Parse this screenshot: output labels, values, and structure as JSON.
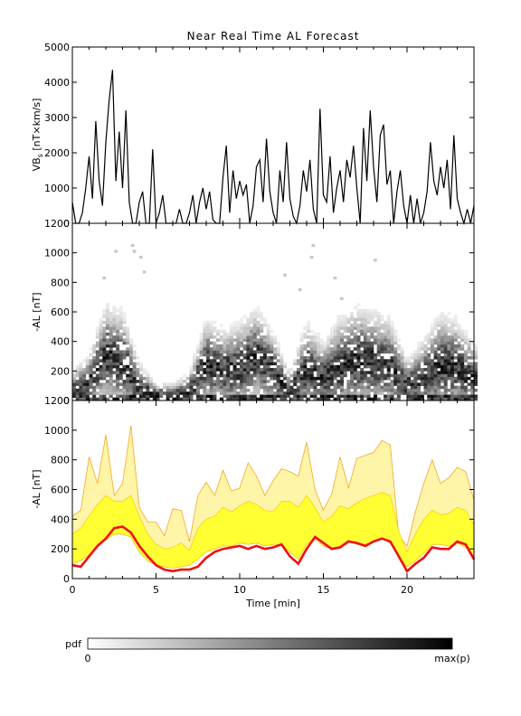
{
  "figure": {
    "title": "Near Real Time AL Forecast",
    "xlabel": "Time [min]",
    "colorbar": {
      "label": "pdf",
      "min_label": "0",
      "max_label": "max(p)"
    }
  },
  "chart_data": [
    {
      "type": "line",
      "ylabel_main": "VB",
      "ylabel_sub": "s",
      "ylabel_units": " [nT×km/s]",
      "xlim": [
        0,
        24
      ],
      "ylim": [
        0,
        5000
      ],
      "yticks": [
        0,
        1000,
        2000,
        3000,
        4000,
        5000
      ],
      "x": [
        0,
        0.2,
        0.4,
        0.6,
        0.8,
        1.0,
        1.2,
        1.4,
        1.6,
        1.8,
        2.0,
        2.2,
        2.4,
        2.6,
        2.8,
        3.0,
        3.2,
        3.4,
        3.6,
        3.8,
        4.0,
        4.2,
        4.4,
        4.6,
        4.8,
        5.0,
        5.2,
        5.4,
        5.6,
        5.8,
        6.0,
        6.2,
        6.4,
        6.6,
        6.8,
        7.0,
        7.2,
        7.4,
        7.6,
        7.8,
        8.0,
        8.2,
        8.4,
        8.6,
        8.8,
        9.0,
        9.2,
        9.4,
        9.6,
        9.8,
        10.0,
        10.2,
        10.4,
        10.6,
        10.8,
        11.0,
        11.2,
        11.4,
        11.6,
        11.8,
        12.0,
        12.2,
        12.4,
        12.6,
        12.8,
        13.0,
        13.2,
        13.4,
        13.6,
        13.8,
        14.0,
        14.2,
        14.4,
        14.6,
        14.8,
        15.0,
        15.2,
        15.4,
        15.6,
        15.8,
        16.0,
        16.2,
        16.4,
        16.6,
        16.8,
        17.0,
        17.2,
        17.4,
        17.6,
        17.8,
        18.0,
        18.2,
        18.4,
        18.6,
        18.8,
        19.0,
        19.2,
        19.4,
        19.6,
        19.8,
        20.0,
        20.2,
        20.4,
        20.6,
        20.8,
        21.0,
        21.2,
        21.4,
        21.6,
        21.8,
        22.0,
        22.2,
        22.4,
        22.6,
        22.8,
        23.0,
        23.2,
        23.4,
        23.6,
        23.8,
        24.0
      ],
      "y": [
        600,
        0,
        0,
        300,
        1000,
        1900,
        700,
        2900,
        1200,
        500,
        2300,
        3500,
        4350,
        1200,
        2600,
        1000,
        3200,
        600,
        0,
        0,
        600,
        900,
        0,
        0,
        2100,
        0,
        300,
        800,
        0,
        0,
        0,
        0,
        400,
        0,
        0,
        300,
        800,
        0,
        600,
        1000,
        400,
        900,
        100,
        0,
        0,
        1300,
        2200,
        300,
        1500,
        700,
        1200,
        800,
        1100,
        0,
        500,
        1600,
        1800,
        600,
        2400,
        900,
        300,
        0,
        1500,
        600,
        2300,
        700,
        200,
        0,
        500,
        1500,
        900,
        1800,
        400,
        0,
        3250,
        800,
        600,
        1900,
        300,
        1000,
        1500,
        600,
        1800,
        1300,
        2200,
        1000,
        0,
        2700,
        1200,
        3200,
        1600,
        600,
        2500,
        2800,
        1100,
        1500,
        0,
        900,
        1500,
        500,
        0,
        800,
        0,
        700,
        0,
        300,
        900,
        2300,
        1200,
        800,
        1600,
        1000,
        1800,
        400,
        2500,
        700,
        300,
        0,
        400,
        0,
        500
      ],
      "series": [
        {
          "values_ref": "y"
        }
      ]
    },
    {
      "type": "heatmap",
      "ylabel": "-AL [nT]",
      "xlim": [
        0,
        24
      ],
      "ylim": [
        0,
        1200
      ],
      "yticks": [
        0,
        200,
        400,
        600,
        800,
        1000,
        1200
      ],
      "bin_width": 0.2,
      "bin_height": 20,
      "values_scale": "0 = white, 1 = max(p)",
      "ridge_x": [
        0,
        1,
        2,
        3,
        4,
        5,
        6,
        7,
        8,
        9,
        10,
        11,
        12,
        13,
        14,
        15,
        16,
        17,
        18,
        19,
        20,
        21,
        22,
        23,
        24
      ],
      "ridge_y": [
        60,
        120,
        300,
        260,
        80,
        30,
        30,
        60,
        250,
        200,
        220,
        300,
        200,
        60,
        210,
        150,
        220,
        270,
        260,
        230,
        100,
        160,
        240,
        220,
        150
      ],
      "ridge_spread": [
        60,
        90,
        160,
        160,
        80,
        40,
        40,
        60,
        140,
        130,
        140,
        150,
        120,
        60,
        150,
        110,
        160,
        170,
        160,
        150,
        80,
        120,
        160,
        150,
        110
      ],
      "outliers": [
        [
          3.5,
          1040
        ],
        [
          3.6,
          1000
        ],
        [
          4.0,
          960
        ],
        [
          4.2,
          860
        ],
        [
          14.3,
          1040
        ],
        [
          14.2,
          960
        ],
        [
          12.6,
          840
        ],
        [
          15.6,
          820
        ],
        [
          18.0,
          940
        ],
        [
          2.5,
          1000
        ],
        [
          1.8,
          820
        ],
        [
          13.5,
          740
        ],
        [
          16.0,
          680
        ]
      ]
    },
    {
      "type": "area",
      "ylabel": "-AL [nT]",
      "xlabel": "Time [min]",
      "xlim": [
        0,
        24
      ],
      "ylim": [
        0,
        1200
      ],
      "yticks": [
        0,
        200,
        400,
        600,
        800,
        1000,
        1200
      ],
      "xticks": [
        0,
        5,
        10,
        15,
        20
      ],
      "x": [
        0,
        0.5,
        1.0,
        1.5,
        2.0,
        2.5,
        3.0,
        3.5,
        4.0,
        4.5,
        5.0,
        5.5,
        6.0,
        6.5,
        7.0,
        7.5,
        8.0,
        8.5,
        9.0,
        9.5,
        10.0,
        10.5,
        11.0,
        11.5,
        12.0,
        12.5,
        13.0,
        13.5,
        14.0,
        14.5,
        15.0,
        15.5,
        16.0,
        16.5,
        17.0,
        17.5,
        18.0,
        18.5,
        19.0,
        19.5,
        20.0,
        20.5,
        21.0,
        21.5,
        22.0,
        22.5,
        23.0,
        23.5,
        24.0
      ],
      "series": [
        {
          "role": "upper_envelope",
          "color": "#f5a623",
          "values": [
            420,
            460,
            820,
            640,
            970,
            560,
            640,
            1030,
            480,
            380,
            380,
            290,
            470,
            460,
            250,
            560,
            650,
            560,
            730,
            590,
            610,
            780,
            690,
            560,
            660,
            740,
            720,
            690,
            920,
            600,
            460,
            570,
            820,
            610,
            810,
            830,
            850,
            930,
            900,
            290,
            220,
            450,
            640,
            800,
            640,
            680,
            750,
            720,
            530
          ]
        },
        {
          "role": "band_upper",
          "color": "#ffff33",
          "values": [
            300,
            340,
            420,
            500,
            560,
            520,
            520,
            560,
            420,
            300,
            230,
            200,
            210,
            240,
            190,
            340,
            400,
            420,
            480,
            450,
            490,
            520,
            500,
            460,
            450,
            520,
            520,
            480,
            560,
            480,
            380,
            420,
            490,
            470,
            510,
            540,
            560,
            580,
            560,
            320,
            180,
            300,
            400,
            460,
            430,
            440,
            480,
            460,
            360
          ]
        },
        {
          "role": "band_lower",
          "color": "#ffff33",
          "values": [
            100,
            120,
            160,
            230,
            260,
            300,
            300,
            280,
            180,
            120,
            90,
            80,
            70,
            80,
            90,
            130,
            180,
            200,
            220,
            220,
            240,
            230,
            240,
            220,
            230,
            230,
            180,
            130,
            230,
            270,
            220,
            200,
            220,
            260,
            230,
            230,
            250,
            270,
            240,
            150,
            80,
            120,
            170,
            230,
            230,
            220,
            240,
            210,
            160
          ]
        },
        {
          "role": "median",
          "name": "",
          "color": "#ee1111",
          "values": [
            90,
            80,
            150,
            220,
            270,
            340,
            350,
            310,
            220,
            150,
            90,
            60,
            50,
            60,
            60,
            80,
            140,
            180,
            200,
            210,
            220,
            200,
            220,
            200,
            210,
            230,
            150,
            100,
            200,
            280,
            240,
            200,
            210,
            250,
            240,
            220,
            250,
            270,
            250,
            150,
            50,
            100,
            140,
            210,
            200,
            200,
            250,
            230,
            130
          ]
        }
      ]
    }
  ]
}
